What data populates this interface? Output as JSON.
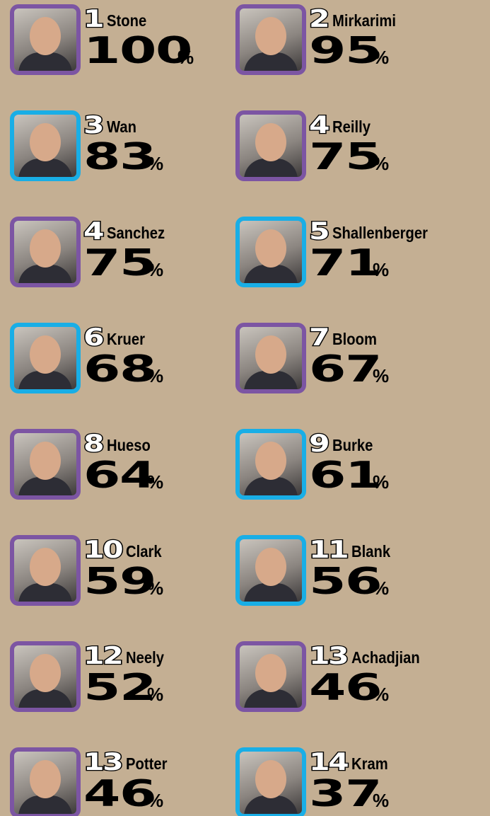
{
  "unit": "%",
  "entries": [
    {
      "rank": 1,
      "name": "Stone",
      "score": 100,
      "frame": "#7c55a3"
    },
    {
      "rank": 2,
      "name": "Mirkarimi",
      "score": 95,
      "frame": "#7c55a3"
    },
    {
      "rank": 3,
      "name": "Wan",
      "score": 83,
      "frame": "#19aee6"
    },
    {
      "rank": 4,
      "name": "Reilly",
      "score": 75,
      "frame": "#7c55a3"
    },
    {
      "rank": 4,
      "name": "Sanchez",
      "score": 75,
      "frame": "#7c55a3"
    },
    {
      "rank": 5,
      "name": "Shallenberger",
      "score": 71,
      "frame": "#19aee6"
    },
    {
      "rank": 6,
      "name": "Kruer",
      "score": 68,
      "frame": "#19aee6"
    },
    {
      "rank": 7,
      "name": "Bloom",
      "score": 67,
      "frame": "#7c55a3"
    },
    {
      "rank": 8,
      "name": "Hueso",
      "score": 64,
      "frame": "#7c55a3"
    },
    {
      "rank": 9,
      "name": "Burke",
      "score": 61,
      "frame": "#19aee6"
    },
    {
      "rank": 10,
      "name": "Clark",
      "score": 59,
      "frame": "#7c55a3"
    },
    {
      "rank": 11,
      "name": "Blank",
      "score": 56,
      "frame": "#19aee6"
    },
    {
      "rank": 12,
      "name": "Neely",
      "score": 52,
      "frame": "#7c55a3"
    },
    {
      "rank": 13,
      "name": "Achadjian",
      "score": 46,
      "frame": "#7c55a3"
    },
    {
      "rank": 13,
      "name": "Potter",
      "score": 46,
      "frame": "#7c55a3"
    },
    {
      "rank": 14,
      "name": "Kram",
      "score": 37,
      "frame": "#19aee6"
    }
  ]
}
